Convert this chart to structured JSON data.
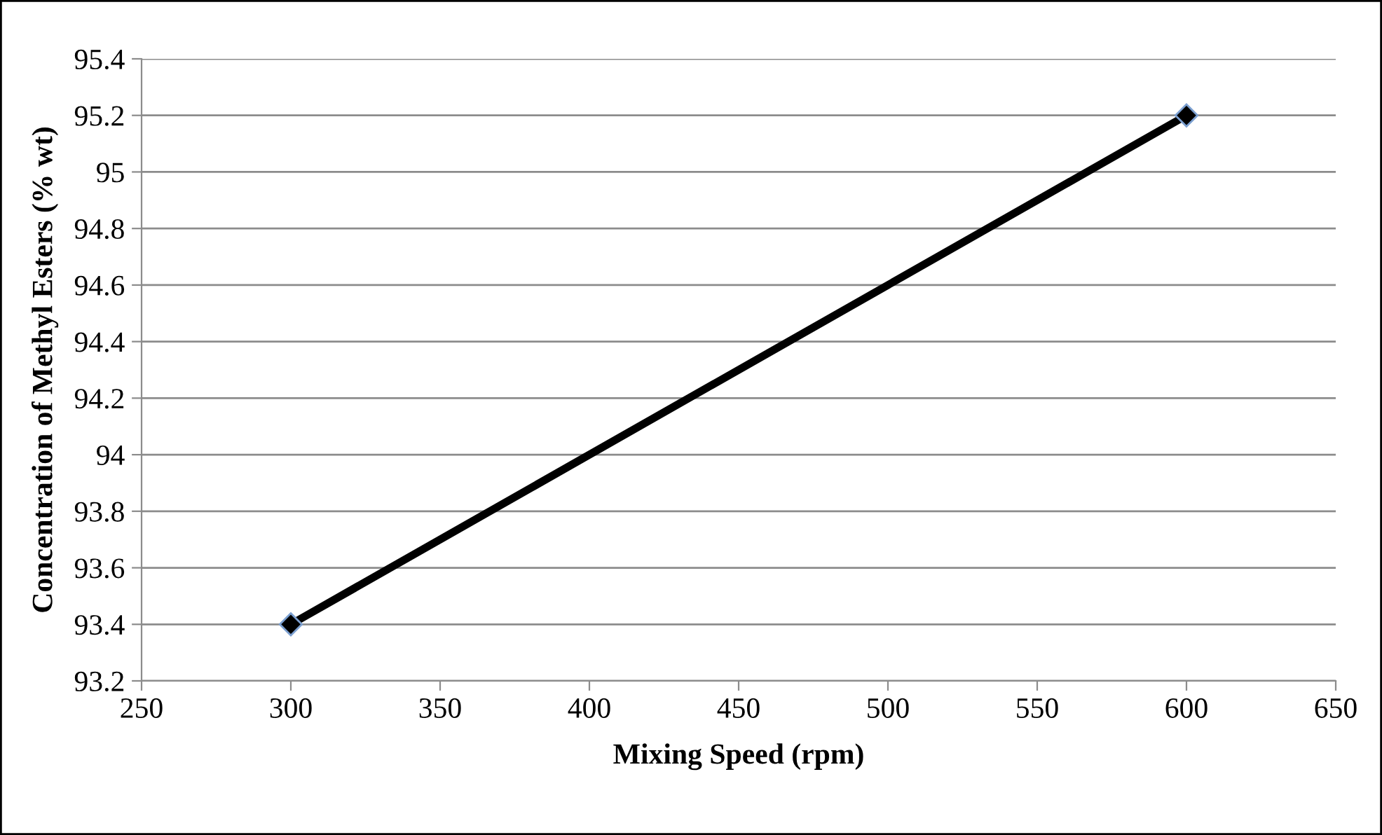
{
  "chart_data": {
    "type": "line",
    "xlabel": "Mixing Speed (rpm)",
    "ylabel": "Concentration of Methyl Esters (% wt)",
    "series": [
      {
        "color": "#000000",
        "x": [
          300,
          600
        ],
        "values": [
          93.4,
          95.2
        ]
      }
    ],
    "xlim": [
      250,
      650
    ],
    "xticks": [
      250,
      300,
      350,
      400,
      450,
      500,
      550,
      600,
      650
    ],
    "ylim": [
      93.2,
      95.4
    ],
    "yticks": [
      93.2,
      93.4,
      93.6,
      93.8,
      {
        "value": 94,
        "label": "94"
      },
      94.2,
      94.4,
      94.6,
      94.8,
      {
        "value": 95,
        "label": "95"
      },
      95.2,
      95.4
    ],
    "grid": "y",
    "marker": "diamond",
    "line_style": "solid",
    "legend": false
  }
}
